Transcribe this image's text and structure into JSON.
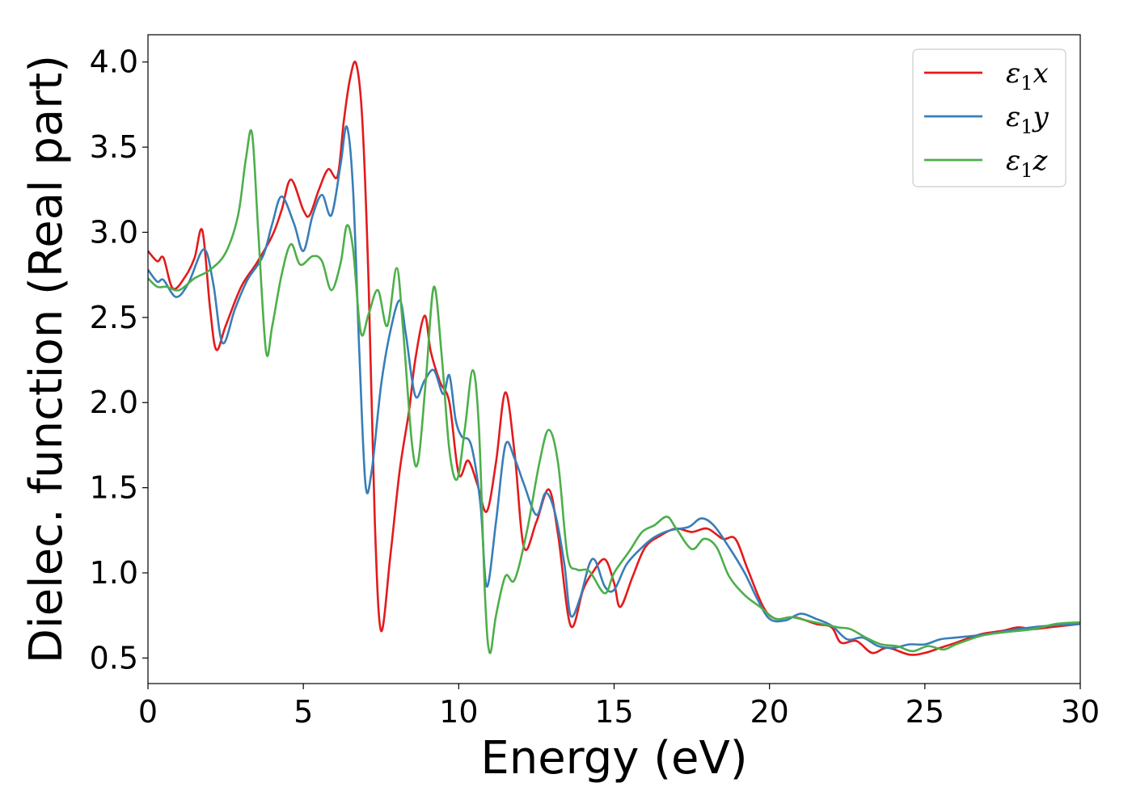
{
  "chart_data": {
    "type": "line",
    "title": "",
    "xlabel": "Energy (eV)",
    "ylabel": "Dielec. function (Real part)",
    "xlim": [
      0,
      30
    ],
    "ylim": [
      0.35,
      4.16
    ],
    "xticks": [
      "0",
      "5",
      "10",
      "15",
      "20",
      "25",
      "30"
    ],
    "yticks": [
      "0.5",
      "1.0",
      "1.5",
      "2.0",
      "2.5",
      "3.0",
      "3.5",
      "4.0"
    ],
    "grid": false,
    "legend_position": "top-right",
    "series": [
      {
        "name": "ε₁x",
        "legend_main": "ε",
        "legend_sub": "1",
        "legend_var": "x",
        "color": "#e41a1c",
        "points": [
          [
            0,
            2.89
          ],
          [
            0.3,
            2.83
          ],
          [
            0.5,
            2.85
          ],
          [
            0.8,
            2.67
          ],
          [
            1.2,
            2.74
          ],
          [
            1.5,
            2.85
          ],
          [
            1.75,
            3.01
          ],
          [
            2.0,
            2.55
          ],
          [
            2.2,
            2.31
          ],
          [
            2.5,
            2.45
          ],
          [
            3.0,
            2.68
          ],
          [
            3.5,
            2.82
          ],
          [
            4.0,
            2.98
          ],
          [
            4.3,
            3.13
          ],
          [
            4.6,
            3.31
          ],
          [
            5.0,
            3.13
          ],
          [
            5.2,
            3.1
          ],
          [
            5.5,
            3.25
          ],
          [
            5.8,
            3.37
          ],
          [
            6.1,
            3.33
          ],
          [
            6.3,
            3.65
          ],
          [
            6.5,
            3.9
          ],
          [
            6.7,
            3.99
          ],
          [
            6.9,
            3.65
          ],
          [
            7.1,
            2.7
          ],
          [
            7.3,
            1.3
          ],
          [
            7.5,
            0.66
          ],
          [
            7.8,
            1.1
          ],
          [
            8.1,
            1.6
          ],
          [
            8.4,
            1.95
          ],
          [
            8.6,
            2.25
          ],
          [
            8.9,
            2.51
          ],
          [
            9.1,
            2.3
          ],
          [
            9.4,
            2.12
          ],
          [
            9.7,
            2.0
          ],
          [
            10.0,
            1.58
          ],
          [
            10.3,
            1.66
          ],
          [
            10.6,
            1.52
          ],
          [
            10.9,
            1.36
          ],
          [
            11.2,
            1.65
          ],
          [
            11.5,
            2.06
          ],
          [
            11.8,
            1.7
          ],
          [
            12.1,
            1.15
          ],
          [
            12.5,
            1.3
          ],
          [
            12.9,
            1.49
          ],
          [
            13.2,
            1.22
          ],
          [
            13.6,
            0.69
          ],
          [
            14.0,
            0.9
          ],
          [
            14.3,
            1.0
          ],
          [
            14.7,
            1.08
          ],
          [
            15.0,
            0.94
          ],
          [
            15.2,
            0.8
          ],
          [
            15.6,
            0.98
          ],
          [
            16.0,
            1.15
          ],
          [
            16.5,
            1.22
          ],
          [
            17.0,
            1.26
          ],
          [
            17.5,
            1.24
          ],
          [
            18.0,
            1.26
          ],
          [
            18.5,
            1.2
          ],
          [
            18.9,
            1.2
          ],
          [
            19.3,
            1.02
          ],
          [
            19.8,
            0.8
          ],
          [
            20.2,
            0.73
          ],
          [
            20.8,
            0.74
          ],
          [
            21.5,
            0.7
          ],
          [
            22.0,
            0.68
          ],
          [
            22.3,
            0.59
          ],
          [
            22.8,
            0.6
          ],
          [
            23.3,
            0.53
          ],
          [
            23.8,
            0.56
          ],
          [
            24.5,
            0.52
          ],
          [
            25.0,
            0.53
          ],
          [
            25.5,
            0.56
          ],
          [
            26.0,
            0.59
          ],
          [
            26.8,
            0.64
          ],
          [
            27.5,
            0.66
          ],
          [
            28.0,
            0.68
          ],
          [
            28.5,
            0.67
          ],
          [
            29.0,
            0.68
          ],
          [
            30,
            0.7
          ]
        ]
      },
      {
        "name": "ε₁y",
        "legend_main": "ε",
        "legend_sub": "1",
        "legend_var": "y",
        "color": "#377eb8",
        "points": [
          [
            0,
            2.78
          ],
          [
            0.3,
            2.71
          ],
          [
            0.5,
            2.72
          ],
          [
            0.9,
            2.62
          ],
          [
            1.3,
            2.7
          ],
          [
            1.8,
            2.9
          ],
          [
            2.1,
            2.7
          ],
          [
            2.4,
            2.35
          ],
          [
            2.8,
            2.55
          ],
          [
            3.2,
            2.72
          ],
          [
            3.7,
            2.86
          ],
          [
            4.0,
            3.05
          ],
          [
            4.3,
            3.21
          ],
          [
            4.7,
            3.05
          ],
          [
            5.0,
            2.89
          ],
          [
            5.3,
            3.1
          ],
          [
            5.6,
            3.22
          ],
          [
            5.9,
            3.1
          ],
          [
            6.2,
            3.4
          ],
          [
            6.4,
            3.62
          ],
          [
            6.6,
            3.25
          ],
          [
            6.8,
            2.3
          ],
          [
            7.0,
            1.52
          ],
          [
            7.2,
            1.6
          ],
          [
            7.5,
            2.1
          ],
          [
            7.8,
            2.42
          ],
          [
            8.1,
            2.6
          ],
          [
            8.3,
            2.4
          ],
          [
            8.6,
            2.04
          ],
          [
            8.9,
            2.13
          ],
          [
            9.2,
            2.19
          ],
          [
            9.5,
            2.05
          ],
          [
            9.7,
            2.16
          ],
          [
            9.9,
            1.9
          ],
          [
            10.1,
            1.8
          ],
          [
            10.4,
            1.75
          ],
          [
            10.7,
            1.4
          ],
          [
            10.9,
            0.92
          ],
          [
            11.2,
            1.3
          ],
          [
            11.5,
            1.75
          ],
          [
            11.8,
            1.67
          ],
          [
            12.1,
            1.52
          ],
          [
            12.5,
            1.34
          ],
          [
            12.8,
            1.47
          ],
          [
            13.1,
            1.35
          ],
          [
            13.4,
            1.05
          ],
          [
            13.6,
            0.75
          ],
          [
            13.9,
            0.85
          ],
          [
            14.2,
            1.05
          ],
          [
            14.4,
            1.07
          ],
          [
            14.7,
            0.92
          ],
          [
            15.0,
            0.9
          ],
          [
            15.4,
            1.05
          ],
          [
            15.9,
            1.15
          ],
          [
            16.3,
            1.21
          ],
          [
            16.8,
            1.25
          ],
          [
            17.4,
            1.27
          ],
          [
            17.8,
            1.32
          ],
          [
            18.2,
            1.28
          ],
          [
            18.7,
            1.15
          ],
          [
            19.2,
            1.0
          ],
          [
            19.6,
            0.85
          ],
          [
            20.0,
            0.73
          ],
          [
            20.5,
            0.72
          ],
          [
            21.0,
            0.76
          ],
          [
            21.5,
            0.73
          ],
          [
            22.0,
            0.69
          ],
          [
            22.5,
            0.61
          ],
          [
            23.0,
            0.62
          ],
          [
            23.5,
            0.57
          ],
          [
            24.0,
            0.56
          ],
          [
            24.5,
            0.58
          ],
          [
            25.0,
            0.58
          ],
          [
            25.5,
            0.61
          ],
          [
            26.0,
            0.62
          ],
          [
            27.0,
            0.64
          ],
          [
            28.0,
            0.67
          ],
          [
            29.0,
            0.69
          ],
          [
            30,
            0.7
          ]
        ]
      },
      {
        "name": "ε₁z",
        "legend_main": "ε",
        "legend_sub": "1",
        "legend_var": "z",
        "color": "#4daf4a",
        "points": [
          [
            0,
            2.73
          ],
          [
            0.3,
            2.68
          ],
          [
            0.6,
            2.68
          ],
          [
            1.0,
            2.66
          ],
          [
            1.5,
            2.73
          ],
          [
            2.0,
            2.78
          ],
          [
            2.5,
            2.88
          ],
          [
            2.9,
            3.1
          ],
          [
            3.15,
            3.43
          ],
          [
            3.35,
            3.58
          ],
          [
            3.55,
            3.0
          ],
          [
            3.8,
            2.3
          ],
          [
            4.0,
            2.45
          ],
          [
            4.3,
            2.75
          ],
          [
            4.6,
            2.93
          ],
          [
            4.9,
            2.81
          ],
          [
            5.3,
            2.86
          ],
          [
            5.6,
            2.83
          ],
          [
            5.9,
            2.66
          ],
          [
            6.2,
            2.82
          ],
          [
            6.4,
            3.04
          ],
          [
            6.6,
            2.9
          ],
          [
            6.85,
            2.41
          ],
          [
            7.1,
            2.52
          ],
          [
            7.4,
            2.66
          ],
          [
            7.7,
            2.45
          ],
          [
            8.0,
            2.79
          ],
          [
            8.2,
            2.45
          ],
          [
            8.5,
            1.75
          ],
          [
            8.7,
            1.66
          ],
          [
            8.95,
            2.15
          ],
          [
            9.2,
            2.68
          ],
          [
            9.45,
            2.28
          ],
          [
            9.7,
            1.72
          ],
          [
            9.95,
            1.55
          ],
          [
            10.2,
            1.85
          ],
          [
            10.45,
            2.19
          ],
          [
            10.65,
            1.85
          ],
          [
            10.85,
            0.85
          ],
          [
            11.0,
            0.53
          ],
          [
            11.2,
            0.75
          ],
          [
            11.5,
            0.98
          ],
          [
            11.8,
            0.96
          ],
          [
            12.2,
            1.25
          ],
          [
            12.6,
            1.65
          ],
          [
            12.9,
            1.84
          ],
          [
            13.2,
            1.64
          ],
          [
            13.5,
            1.1
          ],
          [
            13.8,
            1.02
          ],
          [
            14.2,
            1.01
          ],
          [
            14.7,
            0.88
          ],
          [
            15.0,
            1.0
          ],
          [
            15.5,
            1.13
          ],
          [
            15.9,
            1.24
          ],
          [
            16.3,
            1.28
          ],
          [
            16.7,
            1.33
          ],
          [
            17.0,
            1.26
          ],
          [
            17.5,
            1.14
          ],
          [
            17.9,
            1.2
          ],
          [
            18.3,
            1.15
          ],
          [
            18.7,
            0.98
          ],
          [
            19.2,
            0.87
          ],
          [
            19.7,
            0.8
          ],
          [
            20.2,
            0.73
          ],
          [
            20.7,
            0.74
          ],
          [
            21.2,
            0.72
          ],
          [
            21.7,
            0.7
          ],
          [
            22.2,
            0.68
          ],
          [
            22.6,
            0.67
          ],
          [
            23.1,
            0.62
          ],
          [
            23.6,
            0.58
          ],
          [
            24.1,
            0.57
          ],
          [
            24.6,
            0.54
          ],
          [
            25.1,
            0.57
          ],
          [
            25.6,
            0.55
          ],
          [
            26.0,
            0.58
          ],
          [
            26.8,
            0.63
          ],
          [
            27.5,
            0.65
          ],
          [
            28.5,
            0.67
          ],
          [
            29.2,
            0.7
          ],
          [
            30,
            0.71
          ]
        ]
      }
    ]
  }
}
